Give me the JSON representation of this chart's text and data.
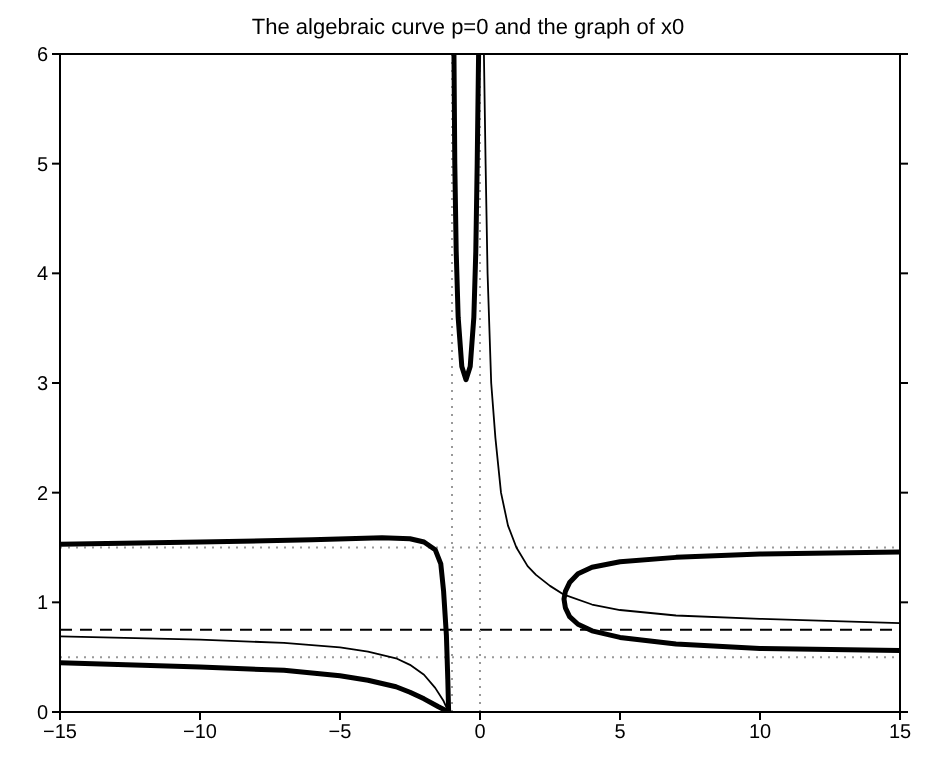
{
  "chart_data": {
    "type": "line",
    "title": "The algebraic curve p=0 and the graph of x0",
    "xlim": [
      -15,
      15
    ],
    "ylim": [
      0,
      6
    ],
    "xticks": [
      {
        "value": -15,
        "label": "−15"
      },
      {
        "value": -10,
        "label": "−10"
      },
      {
        "value": -5,
        "label": "−5"
      },
      0,
      5,
      10,
      15
    ],
    "yticks": [
      0,
      1,
      2,
      3,
      4,
      5,
      6
    ],
    "grid": false,
    "legend": false,
    "marker": "none",
    "series": [
      {
        "color": "#000000",
        "x": [
          -15,
          -10,
          -6,
          -3.5,
          -2.5,
          -2,
          -1.6,
          -1.4,
          -1.3,
          -1.2,
          -1.15,
          -1.12
        ],
        "values": [
          1.53,
          1.55,
          1.57,
          1.59,
          1.58,
          1.55,
          1.48,
          1.35,
          1.1,
          0.7,
          0.3,
          0
        ]
      },
      {
        "color": "#000000",
        "x": [
          -15,
          -10,
          -7,
          -5,
          -4,
          -3,
          -2.5,
          -2,
          -1.5,
          -1.12
        ],
        "values": [
          0.45,
          0.41,
          0.38,
          0.33,
          0.29,
          0.23,
          0.18,
          0.12,
          0.05,
          0
        ]
      },
      {
        "color": "#000000",
        "x": [
          -0.93,
          -0.9,
          -0.85,
          -0.78,
          -0.65,
          -0.5,
          -0.35,
          -0.22,
          -0.15,
          -0.1,
          -0.05
        ],
        "values": [
          6,
          5,
          4.2,
          3.6,
          3.15,
          3.03,
          3.15,
          3.6,
          4.2,
          5,
          6
        ]
      },
      {
        "color": "#000000",
        "x": [
          15,
          10,
          7,
          5,
          4,
          3.5,
          3.2,
          3.05,
          3,
          3.05,
          3.2,
          3.5,
          4,
          5,
          7,
          10,
          15
        ],
        "values": [
          1.46,
          1.44,
          1.41,
          1.37,
          1.32,
          1.26,
          1.18,
          1.1,
          1.03,
          0.95,
          0.87,
          0.8,
          0.74,
          0.68,
          0.62,
          0.58,
          0.56
        ]
      },
      {
        "color": "#000000",
        "x": [
          -15,
          -10,
          -7,
          -5,
          -4,
          -3,
          -2.5,
          -2,
          -1.6,
          -1.3,
          -1.12
        ],
        "values": [
          0.69,
          0.66,
          0.63,
          0.59,
          0.55,
          0.49,
          0.43,
          0.34,
          0.22,
          0.1,
          0
        ]
      },
      {
        "color": "#000000",
        "x": [
          0.14,
          0.2,
          0.27,
          0.4,
          0.55,
          0.75,
          1,
          1.3,
          1.7,
          2,
          2.5,
          3,
          4,
          5,
          7,
          10,
          15
        ],
        "values": [
          6,
          5,
          4,
          3,
          2.5,
          2,
          1.7,
          1.5,
          1.33,
          1.25,
          1.15,
          1.07,
          0.98,
          0.93,
          0.88,
          0.85,
          0.81
        ]
      }
    ],
    "ref_lines": [
      {
        "axis": "y",
        "value": 0.75,
        "color": "#000000",
        "line_style": "dashed"
      },
      {
        "axis": "y",
        "value": 1.5,
        "color": "#999999",
        "line_style": "dotted"
      },
      {
        "axis": "y",
        "value": 0.5,
        "color": "#999999",
        "line_style": "dotted"
      },
      {
        "axis": "x",
        "value": -1,
        "color": "#999999",
        "line_style": "dotted"
      },
      {
        "axis": "x",
        "value": 0,
        "color": "#999999",
        "line_style": "dotted"
      }
    ]
  }
}
